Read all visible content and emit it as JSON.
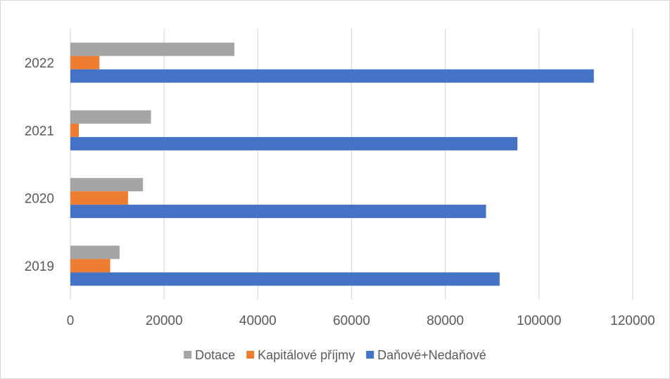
{
  "chart_data": {
    "type": "bar",
    "orientation": "horizontal",
    "categories": [
      "2019",
      "2020",
      "2021",
      "2022"
    ],
    "series": [
      {
        "name": "Dotace",
        "color": "#a5a5a5",
        "values": [
          10500,
          15500,
          17200,
          35000
        ]
      },
      {
        "name": "Kapitálové příjmy",
        "color": "#ed7d31",
        "values": [
          8500,
          12300,
          1800,
          6200
        ]
      },
      {
        "name": "Daňové+Nedaňové",
        "color": "#4472c4",
        "values": [
          91600,
          88700,
          95400,
          111700
        ]
      }
    ],
    "xlim": [
      0,
      120000
    ],
    "xticks": [
      0,
      20000,
      40000,
      60000,
      80000,
      100000,
      120000
    ],
    "grid": true,
    "legend_position": "bottom",
    "title": "",
    "xlabel": "",
    "ylabel": ""
  }
}
